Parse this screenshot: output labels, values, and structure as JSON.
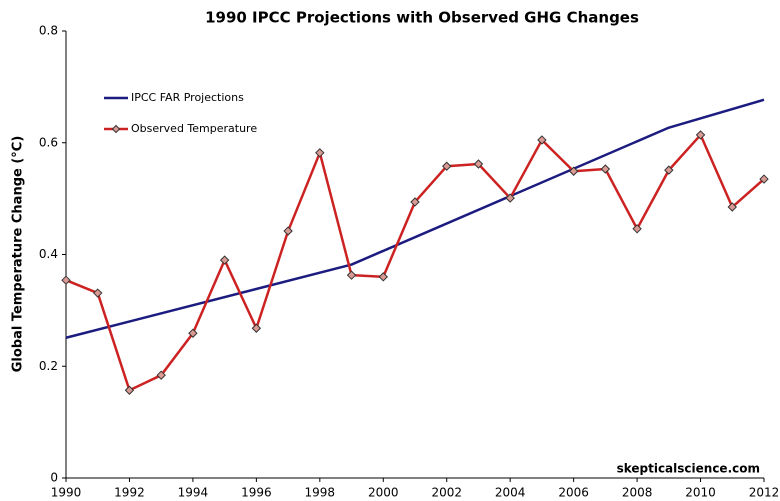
{
  "chart_data": {
    "type": "line",
    "title": "1990 IPCC Projections with Observed GHG Changes",
    "ylabel": "Global Temperature Change (°C)",
    "annotation": "skepticalscience.com",
    "xlim": [
      1990,
      2012
    ],
    "xticks": [
      1990,
      1992,
      1994,
      1996,
      1998,
      2000,
      2002,
      2004,
      2006,
      2008,
      2010,
      2012
    ],
    "ylim": [
      0,
      0.8
    ],
    "yticks": [
      0,
      0.2,
      0.4,
      0.6,
      0.8
    ],
    "grid": false,
    "legend": "upper-left",
    "series": [
      {
        "name": "IPCC FAR Projections",
        "color": "#1c1c80",
        "marker": false,
        "x": [
          1990,
          1999,
          2009,
          2012
        ],
        "values": [
          0.251,
          0.382,
          0.627,
          0.677
        ]
      },
      {
        "name": "Observed Temperature",
        "color": "#cc2222",
        "marker": true,
        "marker_color": "#d99a94",
        "x": [
          1990,
          1991,
          1992,
          1993,
          1994,
          1995,
          1996,
          1997,
          1998,
          1999,
          2000,
          2001,
          2002,
          2003,
          2004,
          2005,
          2006,
          2007,
          2008,
          2009,
          2010,
          2011,
          2012
        ],
        "values": [
          0.354,
          0.331,
          0.157,
          0.184,
          0.259,
          0.39,
          0.268,
          0.442,
          0.582,
          0.363,
          0.36,
          0.494,
          0.558,
          0.562,
          0.501,
          0.605,
          0.549,
          0.553,
          0.446,
          0.551,
          0.614,
          0.485,
          0.535
        ]
      }
    ]
  }
}
